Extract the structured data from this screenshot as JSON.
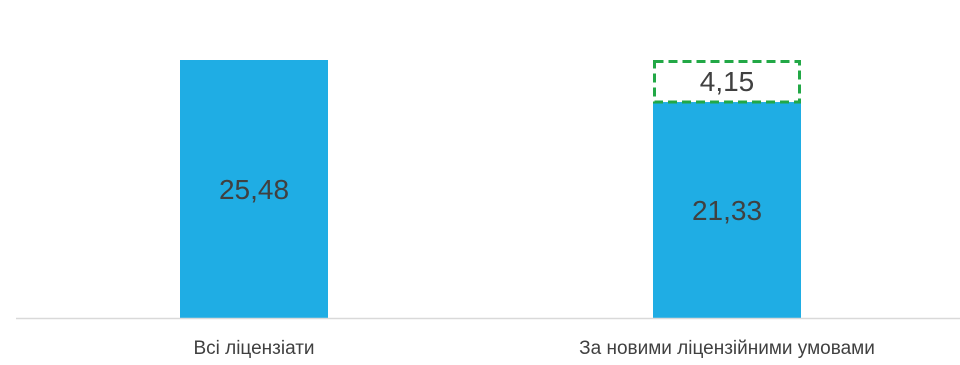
{
  "chart_data": {
    "type": "bar",
    "stacked": true,
    "categories": [
      "Всі ліцензіати",
      "За новими ліцензійними умовами"
    ],
    "series": [
      {
        "values": [
          25.48,
          21.33
        ],
        "labels": [
          "25,48",
          "21,33"
        ],
        "style": "solid"
      },
      {
        "values": [
          0,
          4.15
        ],
        "labels": [
          "",
          "4,15"
        ],
        "style": "dashed-outline"
      }
    ],
    "ylim": [
      0,
      25.48
    ],
    "grid": false,
    "colors": {
      "bar": "#1FADE4",
      "dashed_outline": "#22A846",
      "axis": "#D9D9D9",
      "text": "#404040"
    }
  }
}
